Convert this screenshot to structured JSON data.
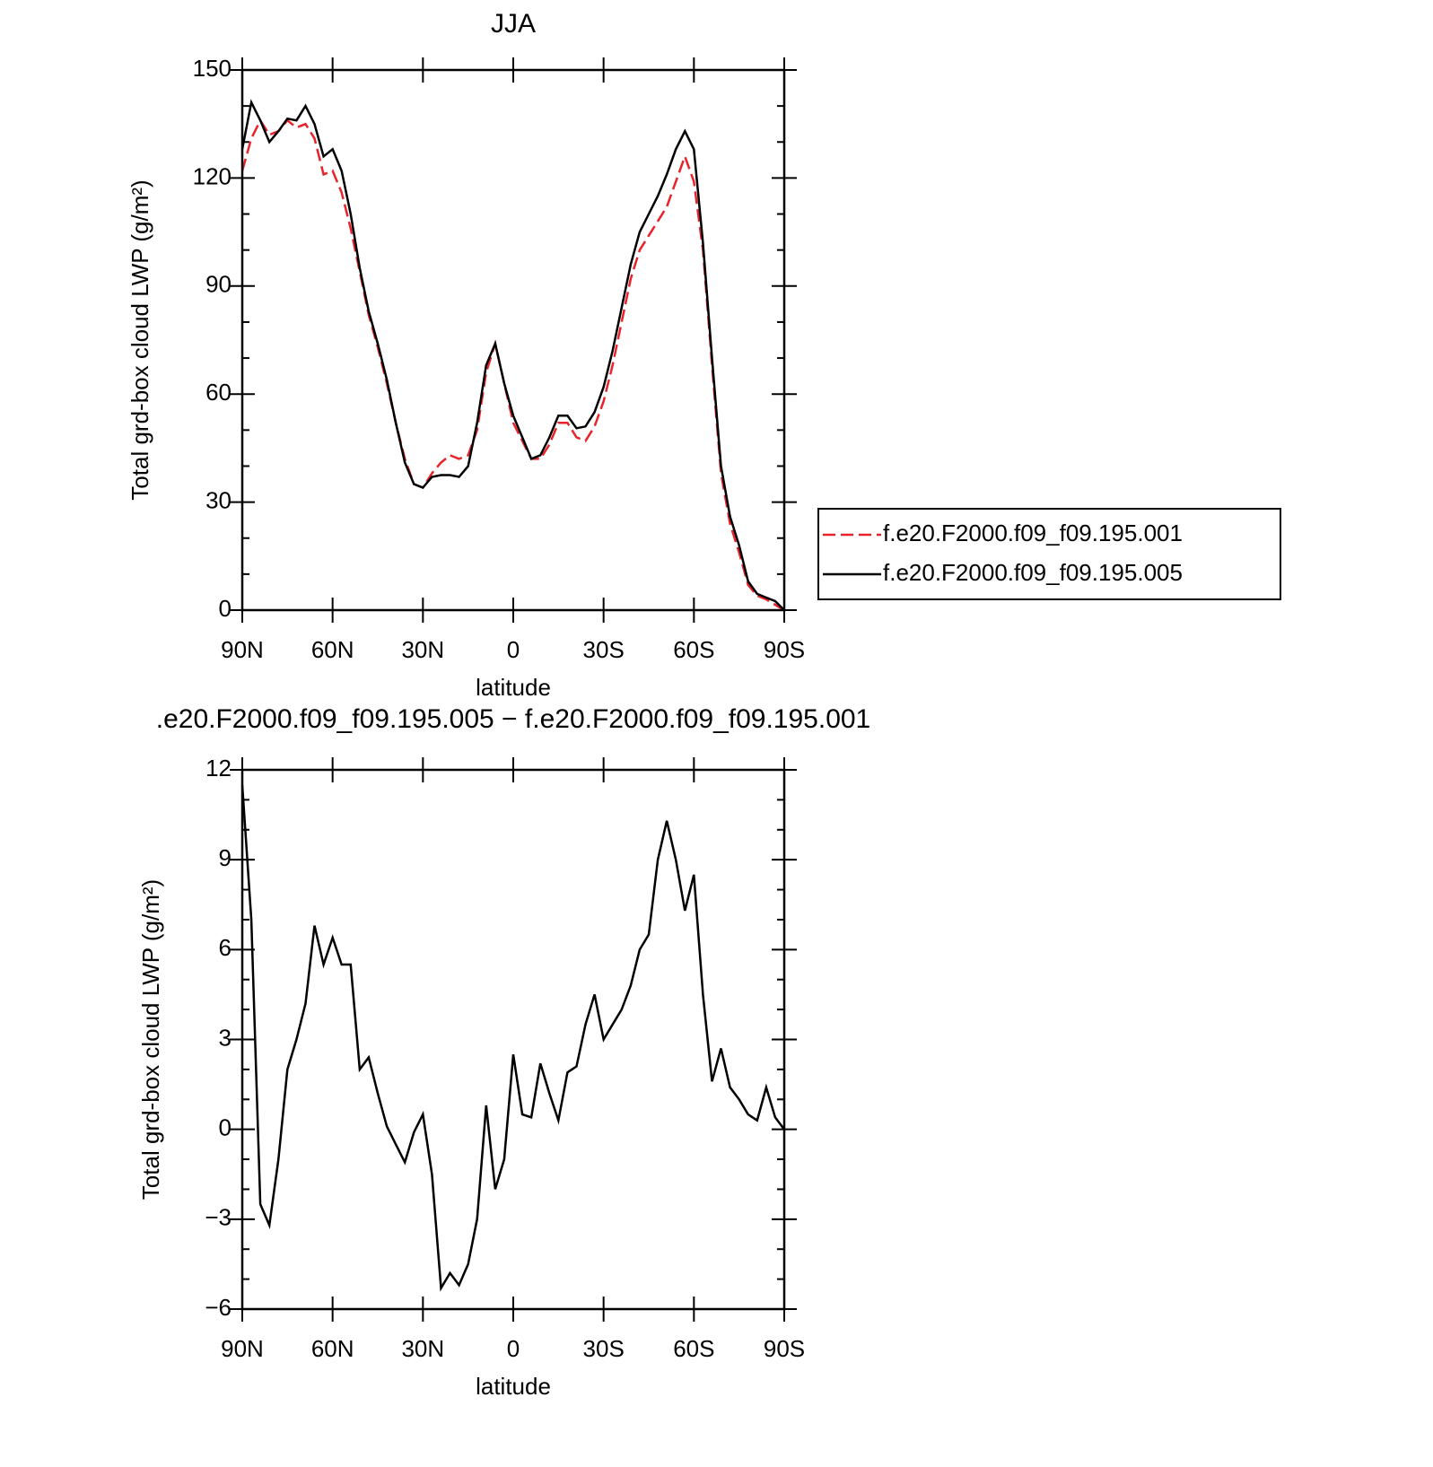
{
  "chart_data": [
    {
      "type": "line",
      "title": "JJA",
      "xlabel": "latitude",
      "ylabel": "Total grd-box cloud LWP (g/m²)",
      "x": [
        90,
        87,
        84,
        81,
        78,
        75,
        72,
        69,
        66,
        63,
        60,
        57,
        54,
        51,
        48,
        45,
        42,
        39,
        36,
        33,
        30,
        27,
        24,
        21,
        18,
        15,
        12,
        9,
        6,
        3,
        0,
        -3,
        -6,
        -9,
        -12,
        -15,
        -18,
        -21,
        -24,
        -27,
        -30,
        -33,
        -36,
        -39,
        -42,
        -45,
        -48,
        -51,
        -54,
        -57,
        -60,
        -63,
        -66,
        -69,
        -72,
        -75,
        -78,
        -81,
        -84,
        -87,
        -90
      ],
      "series": [
        {
          "name": "f.e20.F2000.f09_f09.195.001",
          "color": "#e8242a",
          "dash": true,
          "values": [
            122,
            131,
            136,
            132,
            133,
            136,
            134,
            135,
            131,
            121,
            122,
            116,
            106,
            94,
            82,
            73,
            63,
            52,
            42,
            35,
            34,
            38,
            41,
            43,
            42,
            43,
            50,
            66,
            74,
            63,
            52,
            47,
            42,
            42,
            46,
            52,
            52,
            48,
            47,
            51,
            58,
            68,
            80,
            92,
            100,
            104,
            108,
            112,
            119,
            126,
            119,
            100,
            68,
            38,
            24,
            16,
            7,
            4,
            3,
            1.5,
            0
          ]
        },
        {
          "name": "f.e20.F2000.f09_f09.195.005",
          "color": "#000000",
          "dash": false,
          "values": [
            128,
            141,
            136,
            130,
            133,
            136.5,
            136,
            140,
            135,
            126,
            128,
            122,
            110,
            95,
            83,
            74,
            64,
            52,
            41,
            35,
            34,
            37,
            37.5,
            37.5,
            37,
            40,
            52,
            68,
            74,
            63,
            54,
            48,
            42,
            43,
            48,
            54,
            54,
            50.5,
            51,
            55,
            62,
            72,
            84,
            96,
            105,
            110,
            115,
            121,
            128,
            133,
            128,
            102,
            70,
            40,
            26,
            18,
            8,
            4.5,
            3.5,
            2.5,
            0
          ]
        }
      ],
      "xlim": [
        90,
        -90
      ],
      "xticks": [
        {
          "value": 90,
          "label": "90N"
        },
        {
          "value": 60,
          "label": "60N"
        },
        {
          "value": 30,
          "label": "30N"
        },
        0,
        {
          "value": -30,
          "label": "30S"
        },
        {
          "value": -60,
          "label": "60S"
        },
        {
          "value": -90,
          "label": "90S"
        }
      ],
      "ylim": [
        0,
        150
      ],
      "yticks": [
        0,
        30,
        60,
        90,
        120,
        150
      ],
      "yminor": [
        10,
        20,
        40,
        50,
        70,
        80,
        100,
        110,
        130,
        140
      ],
      "legend": "right"
    },
    {
      "type": "line",
      "title": ".e20.F2000.f09_f09.195.005 − f.e20.F2000.f09_f09.195.001",
      "xlabel": "latitude",
      "ylabel": "Total grd-box cloud LWP (g/m²)",
      "x": [
        90,
        87,
        84,
        81,
        78,
        75,
        72,
        69,
        66,
        63,
        60,
        57,
        54,
        51,
        48,
        45,
        42,
        39,
        36,
        33,
        30,
        27,
        24,
        21,
        18,
        15,
        12,
        9,
        6,
        3,
        0,
        -3,
        -6,
        -9,
        -12,
        -15,
        -18,
        -21,
        -24,
        -27,
        -30,
        -33,
        -36,
        -39,
        -42,
        -45,
        -48,
        -51,
        -54,
        -57,
        -60,
        -63,
        -66,
        -69,
        -72,
        -75,
        -78,
        -81,
        -84,
        -87,
        -90
      ],
      "series": [
        {
          "color": "#000000",
          "dash": false,
          "values": [
            11.5,
            7,
            -2.5,
            -3.2,
            -1,
            2,
            3,
            4.2,
            6.8,
            5.5,
            6.4,
            5.5,
            5.5,
            2,
            2.4,
            1.2,
            0.1,
            -0.5,
            -1.1,
            -0.1,
            0.5,
            -1.5,
            -5.3,
            -4.8,
            -5.2,
            -4.5,
            -3,
            0.8,
            -2,
            -1,
            2.5,
            0.5,
            0.4,
            2.2,
            1.2,
            0.3,
            1.9,
            2.1,
            3.5,
            4.5,
            3,
            3.5,
            4,
            4.8,
            6,
            6.5,
            9,
            10.3,
            9,
            7.3,
            8.5,
            4.5,
            1.6,
            2.7,
            1.4,
            1,
            0.5,
            0.3,
            1.4,
            0.4,
            0
          ]
        }
      ],
      "xlim": [
        90,
        -90
      ],
      "xticks": [
        {
          "value": 90,
          "label": "90N"
        },
        {
          "value": 60,
          "label": "60N"
        },
        {
          "value": 30,
          "label": "30N"
        },
        0,
        {
          "value": -30,
          "label": "30S"
        },
        {
          "value": -60,
          "label": "60S"
        },
        {
          "value": -90,
          "label": "90S"
        }
      ],
      "ylim": [
        -6,
        12
      ],
      "yticks": [
        {
          "value": -6,
          "label": "−6"
        },
        {
          "value": -3,
          "label": "−3"
        },
        0,
        3,
        6,
        9,
        12
      ],
      "yminor": [
        -5,
        -4,
        -2,
        -1,
        1,
        2,
        4,
        5,
        7,
        8,
        10,
        11
      ]
    }
  ]
}
